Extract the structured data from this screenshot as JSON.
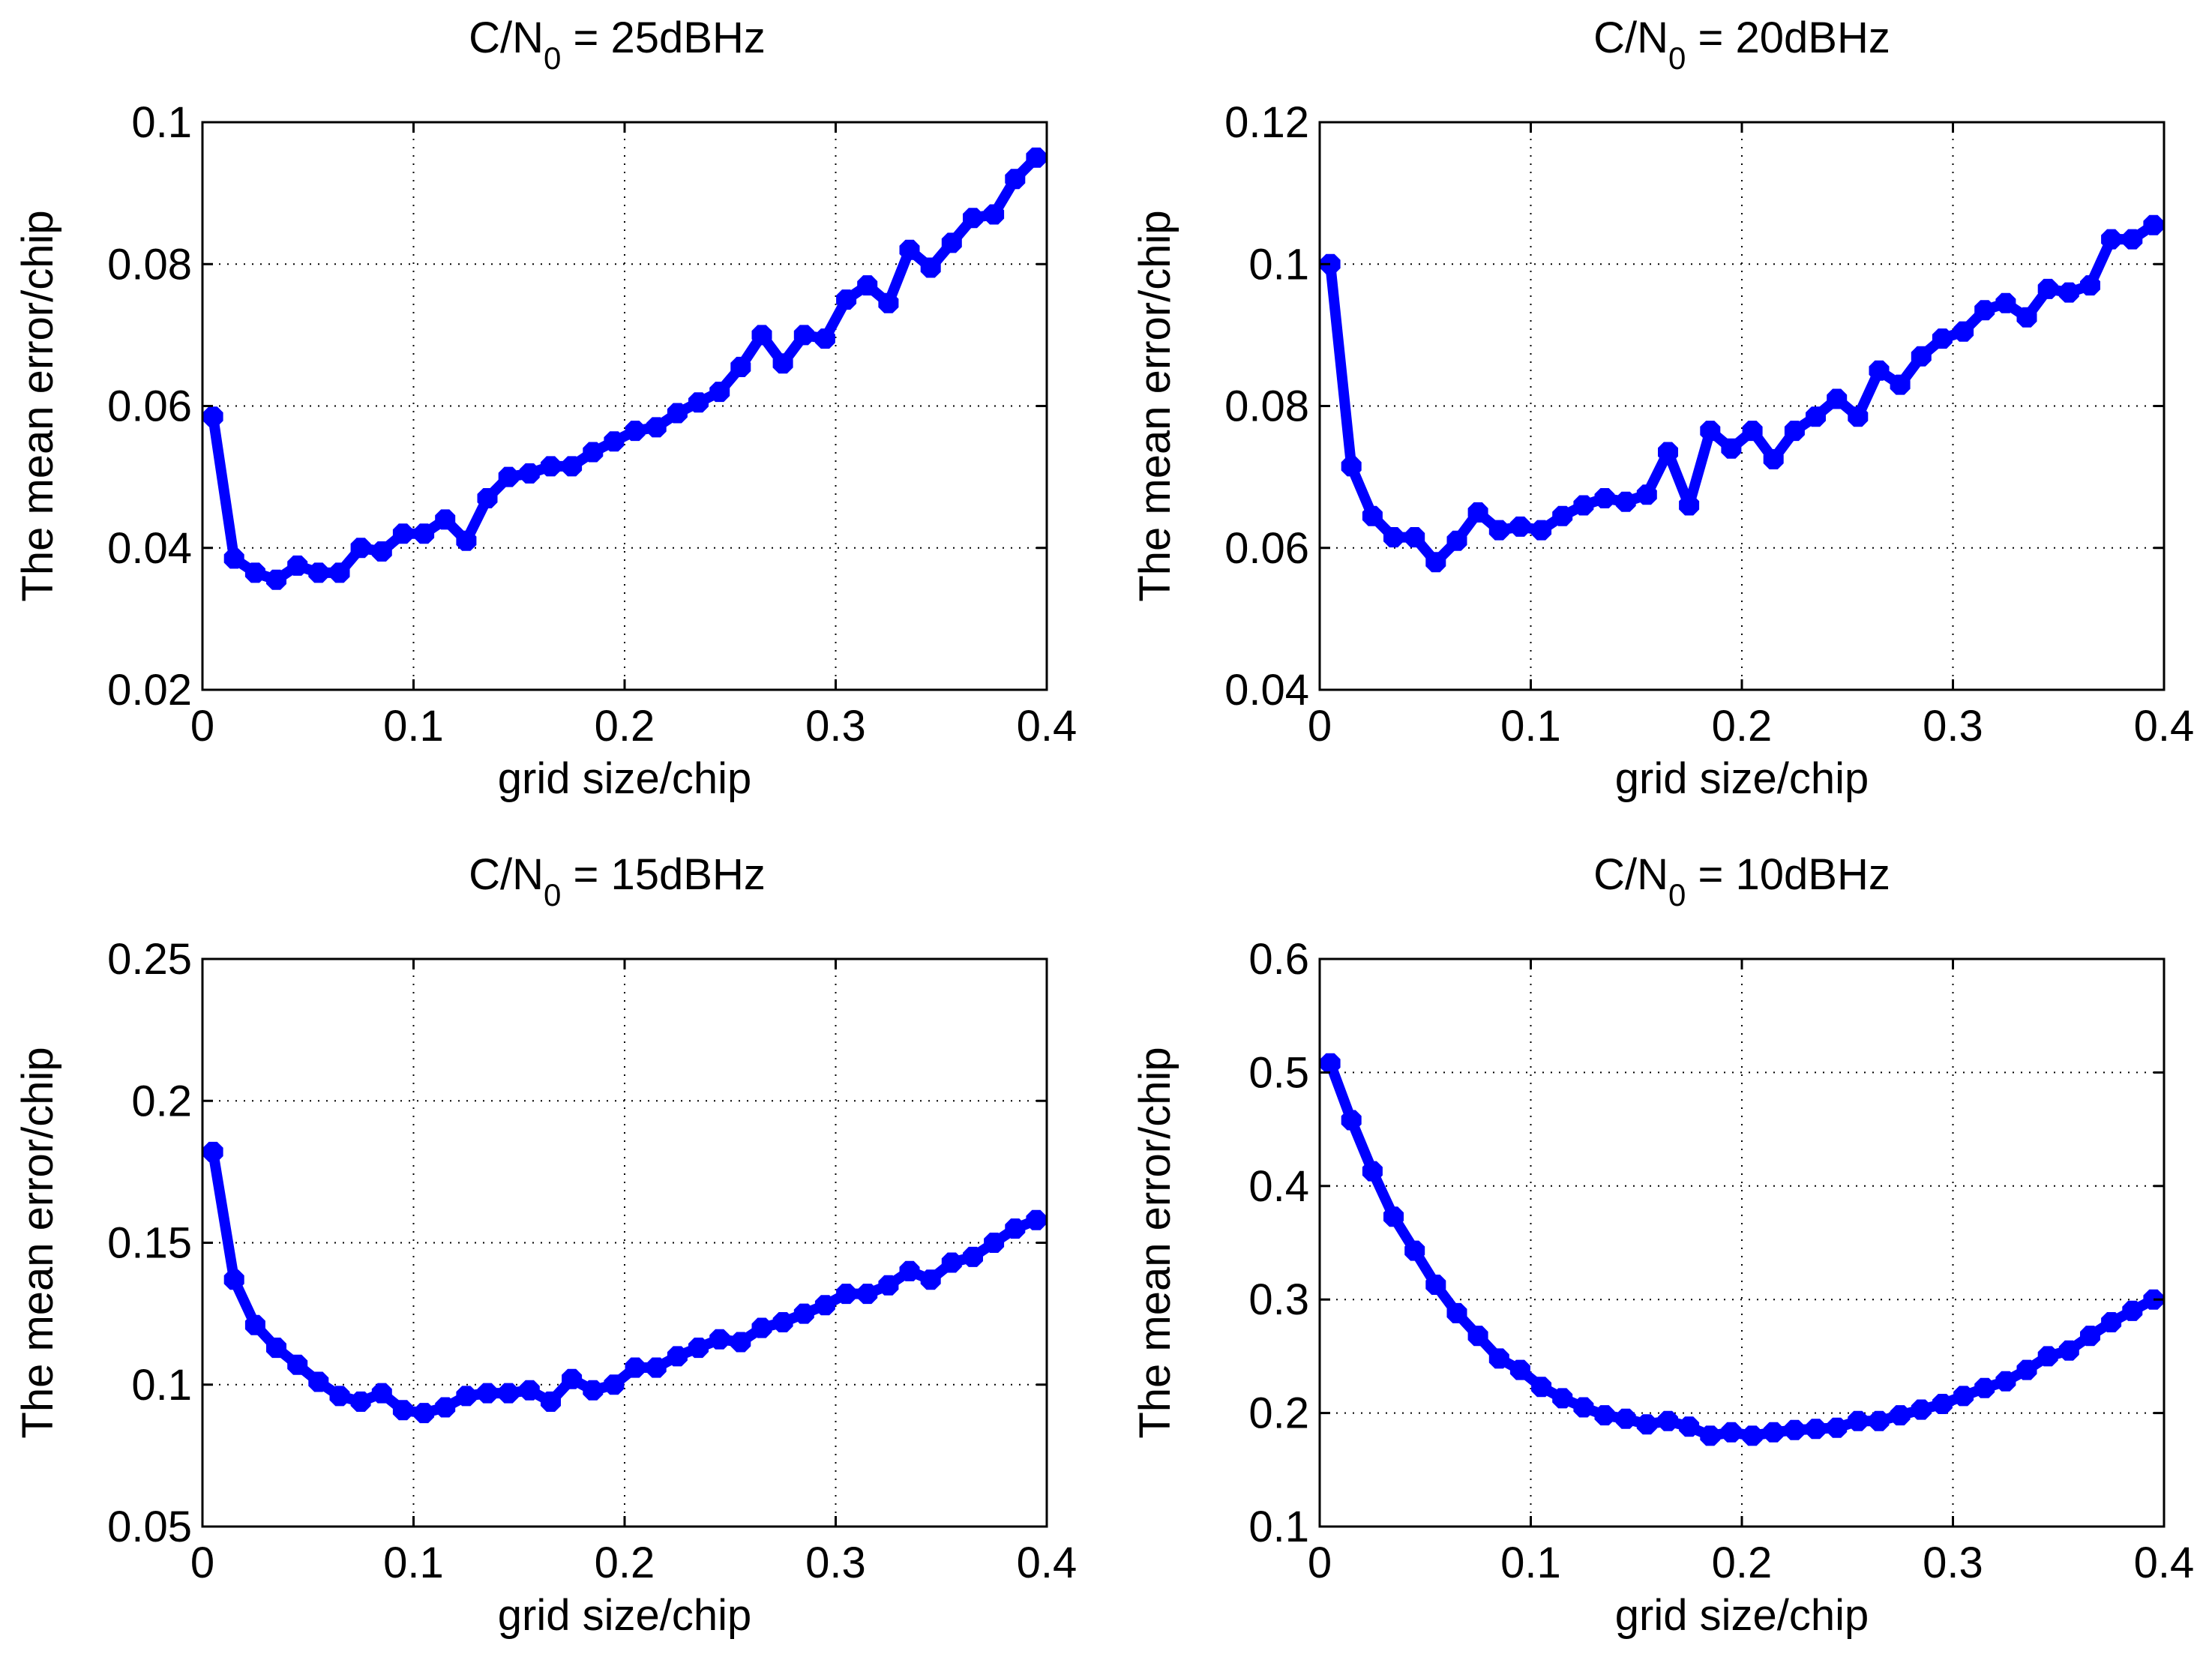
{
  "figure": {
    "background": "#ffffff",
    "line_color": "#0000ff",
    "axis_color": "#000000",
    "grid_color": "#000000"
  },
  "chart_data": [
    {
      "type": "line",
      "title": {
        "prefix": "C/N",
        "subscript": "0",
        "suffix": " = 25dBHz"
      },
      "xlabel": "grid size/chip",
      "ylabel": "The mean error/chip",
      "xlim": [
        0,
        0.4
      ],
      "ylim": [
        0.02,
        0.1
      ],
      "xticks": [
        0,
        0.1,
        0.2,
        0.3,
        0.4
      ],
      "xtick_labels": [
        "0",
        "0.1",
        "0.2",
        "0.3",
        "0.4"
      ],
      "yticks": [
        0.02,
        0.04,
        0.06,
        0.08,
        0.1
      ],
      "ytick_labels": [
        "0.02",
        "0.04",
        "0.06",
        "0.08",
        "0.1"
      ],
      "grid": true,
      "series": [
        {
          "name": "mean error",
          "x": [
            0.005,
            0.015,
            0.025,
            0.035,
            0.045,
            0.055,
            0.065,
            0.075,
            0.085,
            0.095,
            0.105,
            0.115,
            0.125,
            0.135,
            0.145,
            0.155,
            0.165,
            0.175,
            0.185,
            0.195,
            0.205,
            0.215,
            0.225,
            0.235,
            0.245,
            0.255,
            0.265,
            0.275,
            0.285,
            0.295,
            0.305,
            0.315,
            0.325,
            0.335,
            0.345,
            0.355,
            0.365,
            0.375,
            0.385,
            0.395
          ],
          "y": [
            0.0585,
            0.0385,
            0.0365,
            0.0355,
            0.0375,
            0.0365,
            0.0365,
            0.04,
            0.0395,
            0.042,
            0.042,
            0.044,
            0.041,
            0.047,
            0.05,
            0.0505,
            0.0515,
            0.0515,
            0.0535,
            0.055,
            0.0565,
            0.057,
            0.059,
            0.0605,
            0.062,
            0.0655,
            0.07,
            0.066,
            0.07,
            0.0695,
            0.075,
            0.077,
            0.0745,
            0.082,
            0.0795,
            0.083,
            0.0865,
            0.087,
            0.092,
            0.095
          ]
        }
      ]
    },
    {
      "type": "line",
      "title": {
        "prefix": "C/N",
        "subscript": "0",
        "suffix": " = 20dBHz"
      },
      "xlabel": "grid size/chip",
      "ylabel": "The mean error/chip",
      "xlim": [
        0,
        0.4
      ],
      "ylim": [
        0.04,
        0.12
      ],
      "xticks": [
        0,
        0.1,
        0.2,
        0.3,
        0.4
      ],
      "xtick_labels": [
        "0",
        "0.1",
        "0.2",
        "0.3",
        "0.4"
      ],
      "yticks": [
        0.04,
        0.06,
        0.08,
        0.1,
        0.12
      ],
      "ytick_labels": [
        "0.04",
        "0.06",
        "0.08",
        "0.1",
        "0.12"
      ],
      "grid": true,
      "series": [
        {
          "name": "mean error",
          "x": [
            0.005,
            0.015,
            0.025,
            0.035,
            0.045,
            0.055,
            0.065,
            0.075,
            0.085,
            0.095,
            0.105,
            0.115,
            0.125,
            0.135,
            0.145,
            0.155,
            0.165,
            0.175,
            0.185,
            0.195,
            0.205,
            0.215,
            0.225,
            0.235,
            0.245,
            0.255,
            0.265,
            0.275,
            0.285,
            0.295,
            0.305,
            0.315,
            0.325,
            0.335,
            0.345,
            0.355,
            0.365,
            0.375,
            0.385,
            0.395
          ],
          "y": [
            0.1,
            0.0715,
            0.0645,
            0.0615,
            0.0615,
            0.058,
            0.061,
            0.065,
            0.0625,
            0.063,
            0.0625,
            0.0645,
            0.066,
            0.067,
            0.0665,
            0.0675,
            0.0735,
            0.066,
            0.0765,
            0.074,
            0.0765,
            0.0725,
            0.0765,
            0.0785,
            0.081,
            0.0785,
            0.085,
            0.083,
            0.087,
            0.0895,
            0.0905,
            0.0935,
            0.0945,
            0.0925,
            0.0965,
            0.096,
            0.097,
            0.1035,
            0.1035,
            0.1055
          ]
        }
      ]
    },
    {
      "type": "line",
      "title": {
        "prefix": "C/N",
        "subscript": "0",
        "suffix": " = 15dBHz"
      },
      "xlabel": "grid size/chip",
      "ylabel": "The mean error/chip",
      "xlim": [
        0,
        0.4
      ],
      "ylim": [
        0.05,
        0.25
      ],
      "xticks": [
        0,
        0.1,
        0.2,
        0.3,
        0.4
      ],
      "xtick_labels": [
        "0",
        "0.1",
        "0.2",
        "0.3",
        "0.4"
      ],
      "yticks": [
        0.05,
        0.1,
        0.15,
        0.2,
        0.25
      ],
      "ytick_labels": [
        "0.05",
        "0.1",
        "0.15",
        "0.2",
        "0.25"
      ],
      "grid": true,
      "series": [
        {
          "name": "mean error",
          "x": [
            0.005,
            0.015,
            0.025,
            0.035,
            0.045,
            0.055,
            0.065,
            0.075,
            0.085,
            0.095,
            0.105,
            0.115,
            0.125,
            0.135,
            0.145,
            0.155,
            0.165,
            0.175,
            0.185,
            0.195,
            0.205,
            0.215,
            0.225,
            0.235,
            0.245,
            0.255,
            0.265,
            0.275,
            0.285,
            0.295,
            0.305,
            0.315,
            0.325,
            0.335,
            0.345,
            0.355,
            0.365,
            0.375,
            0.385,
            0.395
          ],
          "y": [
            0.182,
            0.137,
            0.121,
            0.113,
            0.107,
            0.101,
            0.096,
            0.094,
            0.097,
            0.091,
            0.09,
            0.092,
            0.096,
            0.097,
            0.097,
            0.098,
            0.094,
            0.102,
            0.098,
            0.1,
            0.106,
            0.106,
            0.11,
            0.113,
            0.116,
            0.115,
            0.12,
            0.122,
            0.125,
            0.128,
            0.132,
            0.132,
            0.135,
            0.14,
            0.137,
            0.143,
            0.145,
            0.15,
            0.155,
            0.158
          ]
        }
      ]
    },
    {
      "type": "line",
      "title": {
        "prefix": "C/N",
        "subscript": "0",
        "suffix": " = 10dBHz"
      },
      "xlabel": "grid size/chip",
      "ylabel": "The mean error/chip",
      "xlim": [
        0,
        0.4
      ],
      "ylim": [
        0.1,
        0.6
      ],
      "xticks": [
        0,
        0.1,
        0.2,
        0.3,
        0.4
      ],
      "xtick_labels": [
        "0",
        "0.1",
        "0.2",
        "0.3",
        "0.4"
      ],
      "yticks": [
        0.1,
        0.2,
        0.3,
        0.4,
        0.5,
        0.6
      ],
      "ytick_labels": [
        "0.1",
        "0.2",
        "0.3",
        "0.4",
        "0.5",
        "0.6"
      ],
      "grid": true,
      "series": [
        {
          "name": "mean error",
          "x": [
            0.005,
            0.015,
            0.025,
            0.035,
            0.045,
            0.055,
            0.065,
            0.075,
            0.085,
            0.095,
            0.105,
            0.115,
            0.125,
            0.135,
            0.145,
            0.155,
            0.165,
            0.175,
            0.185,
            0.195,
            0.205,
            0.215,
            0.225,
            0.235,
            0.245,
            0.255,
            0.265,
            0.275,
            0.285,
            0.295,
            0.305,
            0.315,
            0.325,
            0.335,
            0.345,
            0.355,
            0.365,
            0.375,
            0.385,
            0.395
          ],
          "y": [
            0.508,
            0.458,
            0.413,
            0.373,
            0.343,
            0.313,
            0.288,
            0.268,
            0.248,
            0.238,
            0.223,
            0.213,
            0.205,
            0.198,
            0.195,
            0.19,
            0.193,
            0.188,
            0.18,
            0.183,
            0.18,
            0.183,
            0.185,
            0.186,
            0.187,
            0.193,
            0.193,
            0.198,
            0.203,
            0.208,
            0.215,
            0.222,
            0.228,
            0.238,
            0.25,
            0.255,
            0.268,
            0.28,
            0.29,
            0.3
          ]
        }
      ]
    }
  ]
}
